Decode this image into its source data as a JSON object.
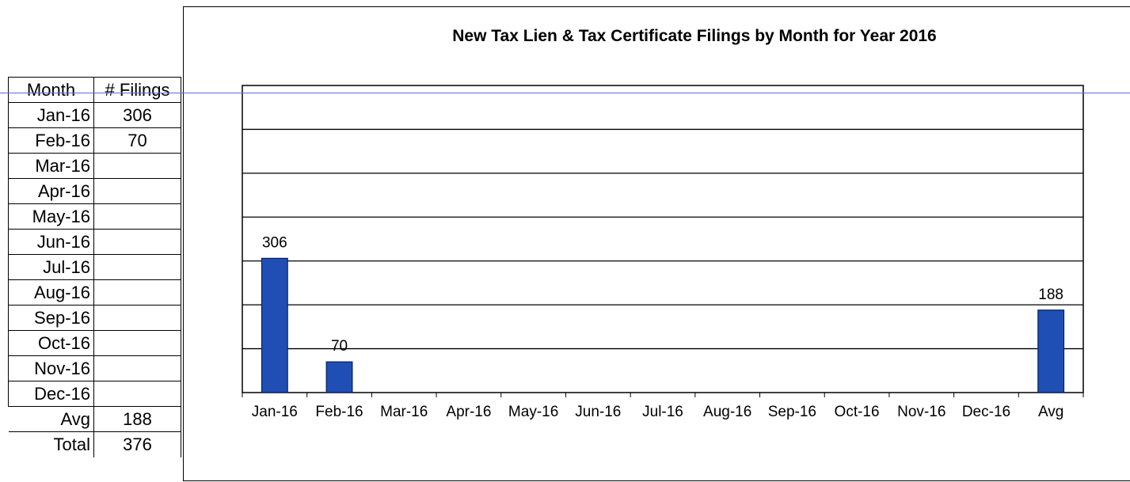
{
  "table": {
    "headers": [
      "Month",
      "# Filings"
    ],
    "rows": [
      {
        "month": "Jan-16",
        "filings": "306"
      },
      {
        "month": "Feb-16",
        "filings": "70"
      },
      {
        "month": "Mar-16",
        "filings": ""
      },
      {
        "month": "Apr-16",
        "filings": ""
      },
      {
        "month": "May-16",
        "filings": ""
      },
      {
        "month": "Jun-16",
        "filings": ""
      },
      {
        "month": "Jul-16",
        "filings": ""
      },
      {
        "month": "Aug-16",
        "filings": ""
      },
      {
        "month": "Sep-16",
        "filings": ""
      },
      {
        "month": "Oct-16",
        "filings": ""
      },
      {
        "month": "Nov-16",
        "filings": ""
      },
      {
        "month": "Dec-16",
        "filings": ""
      }
    ],
    "summary": [
      {
        "label": "Avg",
        "value": "188"
      },
      {
        "label": "Total",
        "value": "376"
      }
    ]
  },
  "chart_data": {
    "type": "bar",
    "title": "New Tax Lien & Tax Certificate Filings by Month for Year 2016",
    "xlabel": "",
    "ylabel": "",
    "categories": [
      "Jan-16",
      "Feb-16",
      "Mar-16",
      "Apr-16",
      "May-16",
      "Jun-16",
      "Jul-16",
      "Aug-16",
      "Sep-16",
      "Oct-16",
      "Nov-16",
      "Dec-16",
      "Avg"
    ],
    "values": [
      306,
      70,
      null,
      null,
      null,
      null,
      null,
      null,
      null,
      null,
      null,
      null,
      188
    ],
    "data_labels": [
      "306",
      "70",
      "",
      "",
      "",
      "",
      "",
      "",
      "",
      "",
      "",
      "",
      "188"
    ],
    "ylim": [
      0,
      700
    ],
    "ytick_step": 100,
    "grid": true,
    "legend": "none",
    "bar_color": "#1f4fb4",
    "bar_edge_color": "#0a1f5c"
  }
}
